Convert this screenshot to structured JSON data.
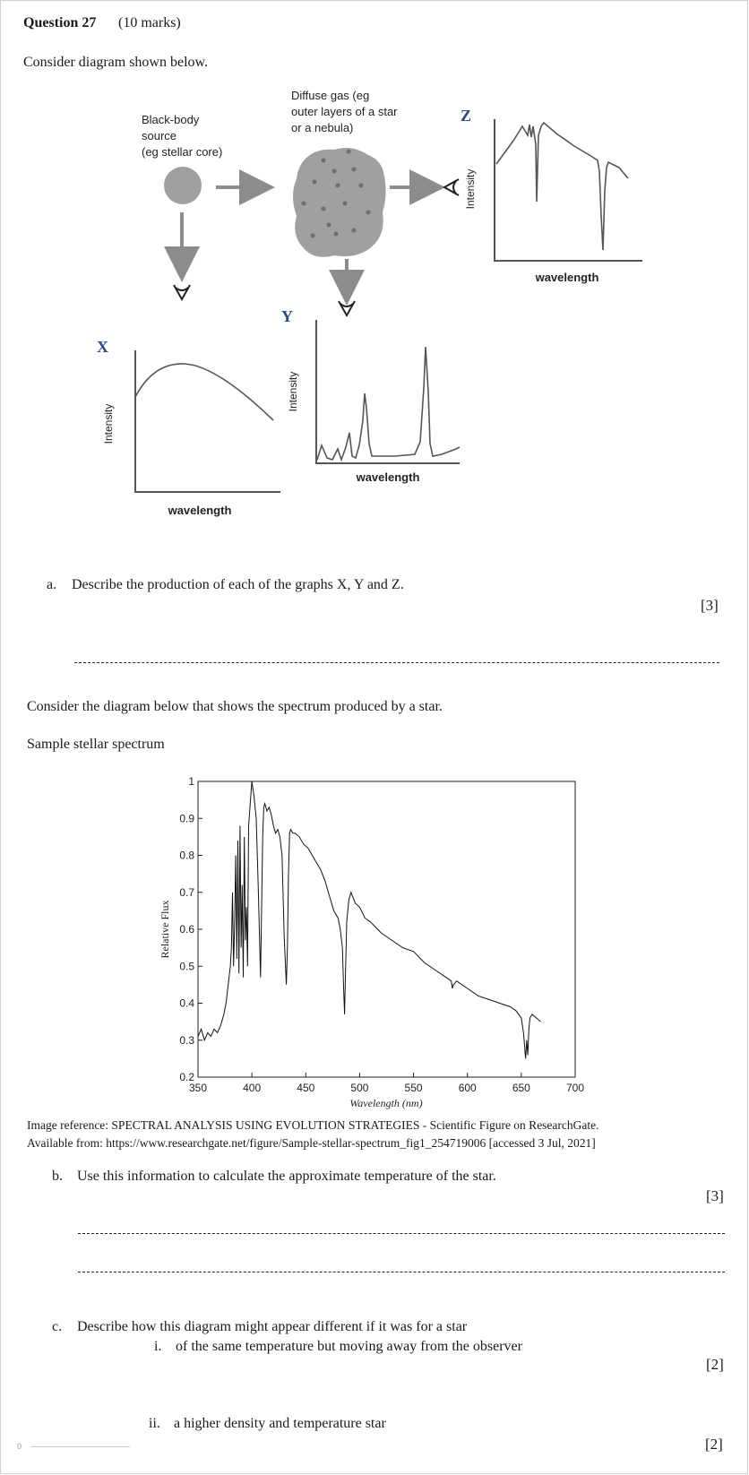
{
  "question": {
    "title": "Question 27",
    "marks_total": "(10 marks)",
    "intro": "Consider diagram shown below."
  },
  "diagram1": {
    "blackbody_label": [
      "Black-body",
      "source",
      "(eg stellar core)"
    ],
    "gas_label": [
      "Diffuse gas (eg",
      "outer layers of a star",
      "or a nebula)"
    ],
    "graph_x": {
      "letter": "X",
      "ylabel": "Intensity",
      "xlabel": "wavelength"
    },
    "graph_y": {
      "letter": "Y",
      "ylabel": "Intensity",
      "xlabel": "wavelength"
    },
    "graph_z": {
      "letter": "Z",
      "ylabel": "Intensity",
      "xlabel": "wavelength"
    },
    "colors": {
      "letters": "#2a4a8c",
      "gray_shape": "#a0a0a0",
      "arrow": "#8c8c8c"
    }
  },
  "part_a": {
    "label": "a.",
    "text": "Describe the production of each of the graphs X, Y and Z.",
    "marks": "[3]"
  },
  "section2": {
    "intro": "Consider the diagram below that shows the spectrum produced by a star.",
    "chart_caption": "Sample stellar spectrum",
    "reference_line1": "Image reference: SPECTRAL ANALYSIS USING EVOLUTION STRATEGIES - Scientific Figure on ResearchGate.",
    "reference_line2": "Available from: https://www.researchgate.net/figure/Sample-stellar-spectrum_fig1_254719006 [accessed 3 Jul, 2021]"
  },
  "chart_data": {
    "type": "line",
    "xlabel": "Wavelength (nm)",
    "ylabel": "Relative Flux",
    "xlim": [
      350,
      700
    ],
    "ylim": [
      0.2,
      1
    ],
    "xticks": [
      "350",
      "400",
      "450",
      "500",
      "550",
      "600",
      "650",
      "700"
    ],
    "yticks": [
      "0.2",
      "0.3",
      "0.4",
      "0.5",
      "0.6",
      "0.7",
      "0.8",
      "0.9",
      "1"
    ],
    "grid": false,
    "series": [
      {
        "x": [
          350,
          353,
          356,
          359,
          362,
          365,
          368,
          371,
          374,
          376,
          378,
          380,
          381,
          382,
          383,
          384,
          385,
          386,
          387,
          388,
          389,
          390,
          391,
          392,
          393,
          394,
          395,
          396,
          397,
          398,
          399,
          400,
          401,
          402,
          404,
          406,
          408,
          410,
          411,
          412,
          414,
          416,
          418,
          420,
          422,
          424,
          426,
          428,
          430,
          432,
          433,
          434,
          435,
          436,
          438,
          440,
          444,
          448,
          452,
          456,
          460,
          464,
          468,
          472,
          476,
          480,
          482,
          484,
          485,
          486,
          487,
          488,
          490,
          492,
          496,
          500,
          505,
          510,
          520,
          530,
          540,
          550,
          560,
          570,
          580,
          585,
          586,
          587,
          590,
          600,
          610,
          620,
          630,
          640,
          645,
          650,
          652,
          654,
          655,
          656,
          657,
          658,
          660,
          664,
          668
        ],
        "y": [
          0.31,
          0.33,
          0.3,
          0.32,
          0.31,
          0.33,
          0.32,
          0.34,
          0.37,
          0.4,
          0.45,
          0.5,
          0.55,
          0.7,
          0.5,
          0.62,
          0.8,
          0.52,
          0.84,
          0.48,
          0.88,
          0.55,
          0.72,
          0.47,
          0.85,
          0.57,
          0.66,
          0.5,
          0.88,
          0.92,
          0.96,
          1.0,
          0.98,
          0.96,
          0.9,
          0.7,
          0.47,
          0.85,
          0.93,
          0.94,
          0.92,
          0.93,
          0.91,
          0.88,
          0.86,
          0.87,
          0.85,
          0.8,
          0.58,
          0.45,
          0.55,
          0.75,
          0.86,
          0.87,
          0.86,
          0.86,
          0.85,
          0.83,
          0.82,
          0.8,
          0.78,
          0.76,
          0.73,
          0.69,
          0.65,
          0.63,
          0.6,
          0.55,
          0.45,
          0.37,
          0.5,
          0.62,
          0.68,
          0.7,
          0.67,
          0.66,
          0.63,
          0.62,
          0.59,
          0.57,
          0.55,
          0.54,
          0.51,
          0.49,
          0.47,
          0.46,
          0.44,
          0.45,
          0.46,
          0.44,
          0.42,
          0.41,
          0.4,
          0.39,
          0.38,
          0.36,
          0.32,
          0.25,
          0.3,
          0.26,
          0.33,
          0.36,
          0.37,
          0.36,
          0.35
        ]
      }
    ]
  },
  "part_b": {
    "label": "b.",
    "text": "Use this information to calculate the approximate temperature of the star.",
    "marks": "[3]"
  },
  "part_c": {
    "label": "c.",
    "text": "Describe how this diagram might appear different if it was for a star",
    "sub_i_label": "i.",
    "sub_i_text": "of the same temperature but moving away from the observer",
    "sub_i_marks": "[2]",
    "sub_ii_label": "ii.",
    "sub_ii_text": "a higher density and temperature star",
    "sub_ii_marks": "[2]"
  },
  "footer": {
    "page_number": "0"
  }
}
